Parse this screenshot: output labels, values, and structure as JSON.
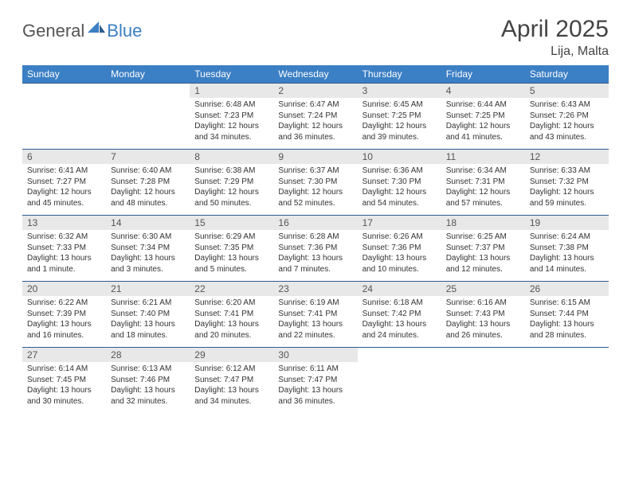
{
  "logo": {
    "general": "General",
    "blue": "Blue"
  },
  "header": {
    "month_title": "April 2025",
    "location": "Lija, Malta"
  },
  "colors": {
    "header_bg": "#3b7fc4",
    "header_text": "#ffffff",
    "daynum_bg": "#e8e8e8",
    "week_border": "#2e5c8a"
  },
  "day_labels": [
    "Sunday",
    "Monday",
    "Tuesday",
    "Wednesday",
    "Thursday",
    "Friday",
    "Saturday"
  ],
  "weeks": [
    [
      null,
      null,
      {
        "n": "1",
        "sr": "Sunrise: 6:48 AM",
        "ss": "Sunset: 7:23 PM",
        "dl": "Daylight: 12 hours and 34 minutes."
      },
      {
        "n": "2",
        "sr": "Sunrise: 6:47 AM",
        "ss": "Sunset: 7:24 PM",
        "dl": "Daylight: 12 hours and 36 minutes."
      },
      {
        "n": "3",
        "sr": "Sunrise: 6:45 AM",
        "ss": "Sunset: 7:25 PM",
        "dl": "Daylight: 12 hours and 39 minutes."
      },
      {
        "n": "4",
        "sr": "Sunrise: 6:44 AM",
        "ss": "Sunset: 7:25 PM",
        "dl": "Daylight: 12 hours and 41 minutes."
      },
      {
        "n": "5",
        "sr": "Sunrise: 6:43 AM",
        "ss": "Sunset: 7:26 PM",
        "dl": "Daylight: 12 hours and 43 minutes."
      }
    ],
    [
      {
        "n": "6",
        "sr": "Sunrise: 6:41 AM",
        "ss": "Sunset: 7:27 PM",
        "dl": "Daylight: 12 hours and 45 minutes."
      },
      {
        "n": "7",
        "sr": "Sunrise: 6:40 AM",
        "ss": "Sunset: 7:28 PM",
        "dl": "Daylight: 12 hours and 48 minutes."
      },
      {
        "n": "8",
        "sr": "Sunrise: 6:38 AM",
        "ss": "Sunset: 7:29 PM",
        "dl": "Daylight: 12 hours and 50 minutes."
      },
      {
        "n": "9",
        "sr": "Sunrise: 6:37 AM",
        "ss": "Sunset: 7:30 PM",
        "dl": "Daylight: 12 hours and 52 minutes."
      },
      {
        "n": "10",
        "sr": "Sunrise: 6:36 AM",
        "ss": "Sunset: 7:30 PM",
        "dl": "Daylight: 12 hours and 54 minutes."
      },
      {
        "n": "11",
        "sr": "Sunrise: 6:34 AM",
        "ss": "Sunset: 7:31 PM",
        "dl": "Daylight: 12 hours and 57 minutes."
      },
      {
        "n": "12",
        "sr": "Sunrise: 6:33 AM",
        "ss": "Sunset: 7:32 PM",
        "dl": "Daylight: 12 hours and 59 minutes."
      }
    ],
    [
      {
        "n": "13",
        "sr": "Sunrise: 6:32 AM",
        "ss": "Sunset: 7:33 PM",
        "dl": "Daylight: 13 hours and 1 minute."
      },
      {
        "n": "14",
        "sr": "Sunrise: 6:30 AM",
        "ss": "Sunset: 7:34 PM",
        "dl": "Daylight: 13 hours and 3 minutes."
      },
      {
        "n": "15",
        "sr": "Sunrise: 6:29 AM",
        "ss": "Sunset: 7:35 PM",
        "dl": "Daylight: 13 hours and 5 minutes."
      },
      {
        "n": "16",
        "sr": "Sunrise: 6:28 AM",
        "ss": "Sunset: 7:36 PM",
        "dl": "Daylight: 13 hours and 7 minutes."
      },
      {
        "n": "17",
        "sr": "Sunrise: 6:26 AM",
        "ss": "Sunset: 7:36 PM",
        "dl": "Daylight: 13 hours and 10 minutes."
      },
      {
        "n": "18",
        "sr": "Sunrise: 6:25 AM",
        "ss": "Sunset: 7:37 PM",
        "dl": "Daylight: 13 hours and 12 minutes."
      },
      {
        "n": "19",
        "sr": "Sunrise: 6:24 AM",
        "ss": "Sunset: 7:38 PM",
        "dl": "Daylight: 13 hours and 14 minutes."
      }
    ],
    [
      {
        "n": "20",
        "sr": "Sunrise: 6:22 AM",
        "ss": "Sunset: 7:39 PM",
        "dl": "Daylight: 13 hours and 16 minutes."
      },
      {
        "n": "21",
        "sr": "Sunrise: 6:21 AM",
        "ss": "Sunset: 7:40 PM",
        "dl": "Daylight: 13 hours and 18 minutes."
      },
      {
        "n": "22",
        "sr": "Sunrise: 6:20 AM",
        "ss": "Sunset: 7:41 PM",
        "dl": "Daylight: 13 hours and 20 minutes."
      },
      {
        "n": "23",
        "sr": "Sunrise: 6:19 AM",
        "ss": "Sunset: 7:41 PM",
        "dl": "Daylight: 13 hours and 22 minutes."
      },
      {
        "n": "24",
        "sr": "Sunrise: 6:18 AM",
        "ss": "Sunset: 7:42 PM",
        "dl": "Daylight: 13 hours and 24 minutes."
      },
      {
        "n": "25",
        "sr": "Sunrise: 6:16 AM",
        "ss": "Sunset: 7:43 PM",
        "dl": "Daylight: 13 hours and 26 minutes."
      },
      {
        "n": "26",
        "sr": "Sunrise: 6:15 AM",
        "ss": "Sunset: 7:44 PM",
        "dl": "Daylight: 13 hours and 28 minutes."
      }
    ],
    [
      {
        "n": "27",
        "sr": "Sunrise: 6:14 AM",
        "ss": "Sunset: 7:45 PM",
        "dl": "Daylight: 13 hours and 30 minutes."
      },
      {
        "n": "28",
        "sr": "Sunrise: 6:13 AM",
        "ss": "Sunset: 7:46 PM",
        "dl": "Daylight: 13 hours and 32 minutes."
      },
      {
        "n": "29",
        "sr": "Sunrise: 6:12 AM",
        "ss": "Sunset: 7:47 PM",
        "dl": "Daylight: 13 hours and 34 minutes."
      },
      {
        "n": "30",
        "sr": "Sunrise: 6:11 AM",
        "ss": "Sunset: 7:47 PM",
        "dl": "Daylight: 13 hours and 36 minutes."
      },
      null,
      null,
      null
    ]
  ]
}
